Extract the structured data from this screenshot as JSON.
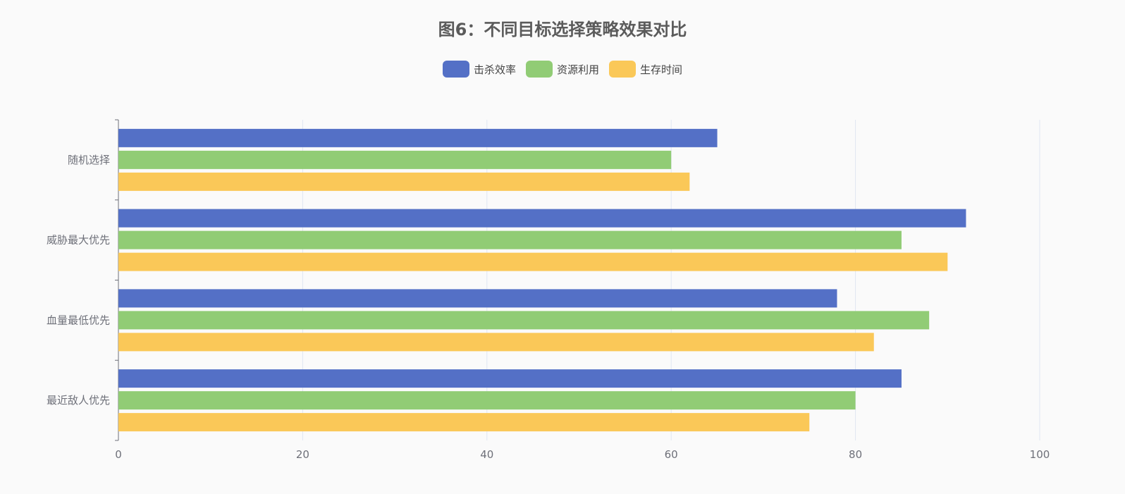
{
  "chart_data": {
    "type": "bar",
    "orientation": "horizontal",
    "title": "图6：不同目标选择策略效果对比",
    "categories": [
      "随机选择",
      "威胁最大优先",
      "血量最低优先",
      "最近敌人优先"
    ],
    "series": [
      {
        "name": "击杀效率",
        "color": "#5470c6",
        "values": [
          65,
          92,
          78,
          85
        ]
      },
      {
        "name": "资源利用",
        "color": "#91cc75",
        "values": [
          60,
          85,
          88,
          80
        ]
      },
      {
        "name": "生存时间",
        "color": "#fac858",
        "values": [
          62,
          90,
          82,
          75
        ]
      }
    ],
    "xlim": [
      0,
      100
    ],
    "xticks": [
      0,
      20,
      40,
      60,
      80,
      100
    ],
    "grid": true,
    "legend_position": "top-center"
  }
}
